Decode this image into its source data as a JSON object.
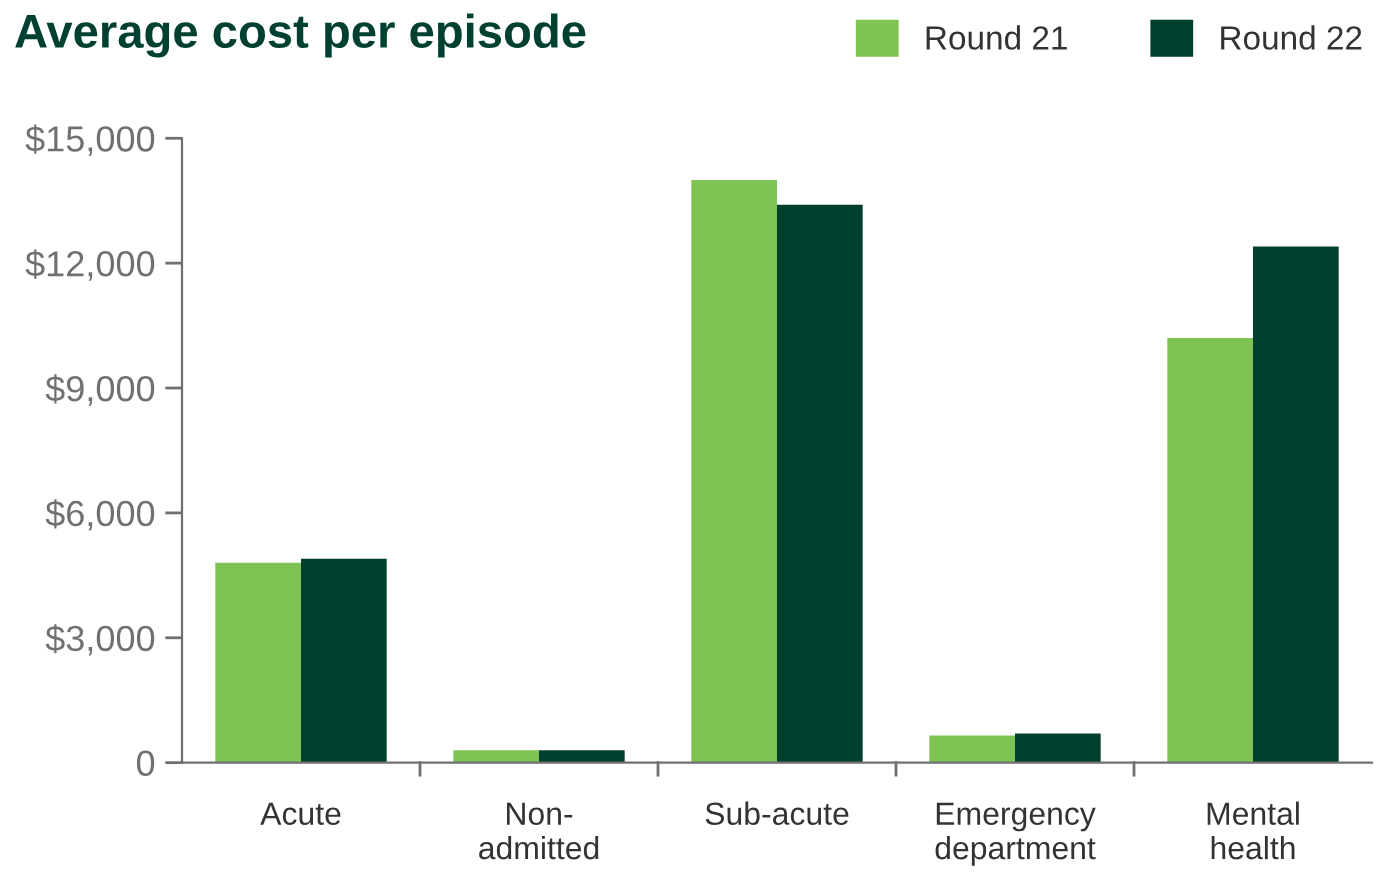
{
  "chart_data": {
    "type": "bar",
    "title": "Average cost per episode",
    "categories": [
      "Acute",
      "Non-\nadmitted",
      "Sub-acute",
      "Emergency\ndepartment",
      "Mental\nhealth"
    ],
    "series": [
      {
        "name": "Round 21",
        "color": "#7fc355",
        "values": [
          4800,
          300,
          14000,
          650,
          10200
        ]
      },
      {
        "name": "Round 22",
        "color": "#003f2d",
        "values": [
          4900,
          300,
          13400,
          700,
          12400
        ]
      }
    ],
    "ylim": [
      0,
      15000
    ],
    "yticks": [
      {
        "value": 0,
        "label": "0"
      },
      {
        "value": 3000,
        "label": "$3,000"
      },
      {
        "value": 6000,
        "label": "$6,000"
      },
      {
        "value": 9000,
        "label": "$9,000"
      },
      {
        "value": 12000,
        "label": "$12,000"
      },
      {
        "value": 15000,
        "label": "$15,000"
      }
    ],
    "grid": false,
    "legend": "top right"
  }
}
